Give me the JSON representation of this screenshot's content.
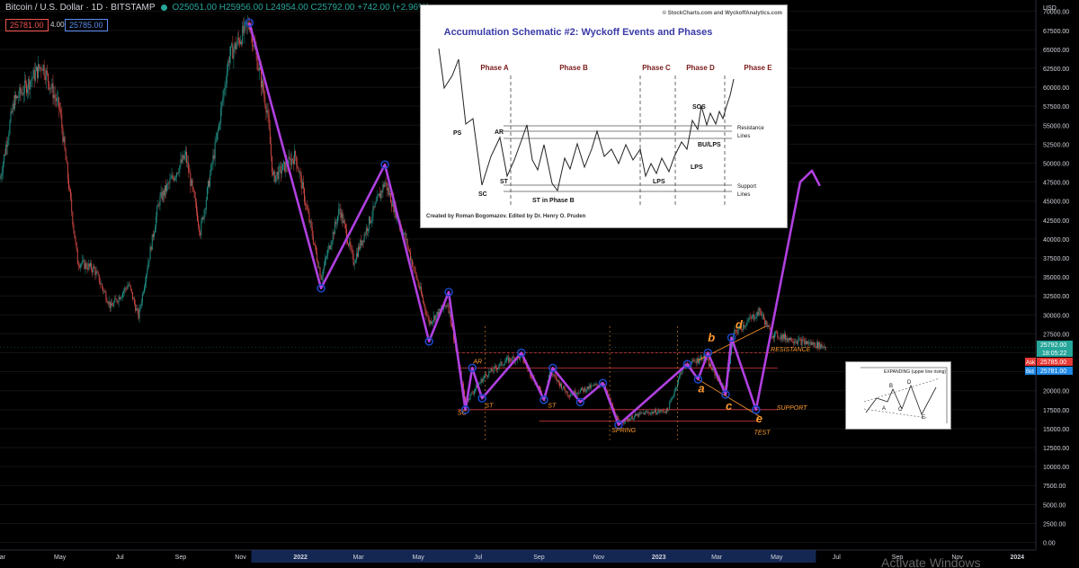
{
  "header": {
    "symbol": "Bitcoin / U.S. Dollar · 1D · BITSTAMP",
    "ohlc": "O25051.00 H25956.00 L24954.00 C25792.00 +742.00 (+2.96%)",
    "bid_price": "25781.00",
    "spread": "4.00",
    "ask_price": "25785.00"
  },
  "chart_data": {
    "type": "candlestick",
    "currency_label": "USD",
    "y_ticks": [
      0,
      2500,
      5000,
      7500,
      10000,
      12500,
      15000,
      17500,
      20000,
      22500,
      25000,
      27500,
      30000,
      32500,
      35000,
      37500,
      40000,
      42500,
      45000,
      47500,
      50000,
      52500,
      55000,
      57500,
      60000,
      62500,
      65000,
      67500,
      70000
    ],
    "y_tick_labels": [
      "0.00",
      "2500.00",
      "5000.00",
      "7500.00",
      "10000.00",
      "12500.00",
      "15000.00",
      "17500.00",
      "20000.00",
      "22500.00",
      "25000.00",
      "27500.00",
      "30000.00",
      "32500.00",
      "35000.00",
      "37500.00",
      "40000.00",
      "42500.00",
      "45000.00",
      "47500.00",
      "50000.00",
      "52500.00",
      "55000.00",
      "57500.00",
      "60000.00",
      "62500.00",
      "65000.00",
      "67500.00",
      "70000.00"
    ],
    "ylim": [
      -1000,
      71500
    ],
    "x_start": "2021-03-01",
    "x_end": "2024-01-20",
    "x_ticks": [
      {
        "date": "2021-03-01",
        "label": "Mar"
      },
      {
        "date": "2021-05-01",
        "label": "May"
      },
      {
        "date": "2021-07-01",
        "label": "Jul"
      },
      {
        "date": "2021-09-01",
        "label": "Sep"
      },
      {
        "date": "2021-11-01",
        "label": "Nov"
      },
      {
        "date": "2022-01-01",
        "label": "2022"
      },
      {
        "date": "2022-03-01",
        "label": "Mar"
      },
      {
        "date": "2022-05-01",
        "label": "May"
      },
      {
        "date": "2022-07-01",
        "label": "Jul"
      },
      {
        "date": "2022-09-01",
        "label": "Sep"
      },
      {
        "date": "2022-11-01",
        "label": "Nov"
      },
      {
        "date": "2023-01-01",
        "label": "2023"
      },
      {
        "date": "2023-03-01",
        "label": "Mar"
      },
      {
        "date": "2023-05-01",
        "label": "May"
      },
      {
        "date": "2023-07-01",
        "label": "Jul"
      },
      {
        "date": "2023-09-01",
        "label": "Sep"
      },
      {
        "date": "2023-11-01",
        "label": "Nov"
      },
      {
        "date": "2024-01-01",
        "label": "2024"
      }
    ],
    "price_path": [
      [
        "2021-03-01",
        48000
      ],
      [
        "2021-03-15",
        58000
      ],
      [
        "2021-04-13",
        63000
      ],
      [
        "2021-05-01",
        57000
      ],
      [
        "2021-05-19",
        37000
      ],
      [
        "2021-06-05",
        36000
      ],
      [
        "2021-06-22",
        31000
      ],
      [
        "2021-07-10",
        34000
      ],
      [
        "2021-07-20",
        29800
      ],
      [
        "2021-08-10",
        45000
      ],
      [
        "2021-09-06",
        51000
      ],
      [
        "2021-09-21",
        41000
      ],
      [
        "2021-10-10",
        55000
      ],
      [
        "2021-10-20",
        64000
      ],
      [
        "2021-11-10",
        68500
      ],
      [
        "2021-11-28",
        57000
      ],
      [
        "2021-12-04",
        48000
      ],
      [
        "2021-12-27",
        51000
      ],
      [
        "2022-01-22",
        35000
      ],
      [
        "2022-02-10",
        44000
      ],
      [
        "2022-02-24",
        37000
      ],
      [
        "2022-03-28",
        47500
      ],
      [
        "2022-04-18",
        40000
      ],
      [
        "2022-05-12",
        29000
      ],
      [
        "2022-05-31",
        31500
      ],
      [
        "2022-06-18",
        18500
      ],
      [
        "2022-07-08",
        22000
      ],
      [
        "2022-07-30",
        24000
      ],
      [
        "2022-08-14",
        24500
      ],
      [
        "2022-09-06",
        19000
      ],
      [
        "2022-09-12",
        22500
      ],
      [
        "2022-10-01",
        19500
      ],
      [
        "2022-11-05",
        21000
      ],
      [
        "2022-11-21",
        15800
      ],
      [
        "2022-12-15",
        17000
      ],
      [
        "2023-01-10",
        17400
      ],
      [
        "2023-01-25",
        23000
      ],
      [
        "2023-02-16",
        24500
      ],
      [
        "2023-03-10",
        20000
      ],
      [
        "2023-03-18",
        27500
      ],
      [
        "2023-04-14",
        30500
      ],
      [
        "2023-04-25",
        27500
      ],
      [
        "2023-05-25",
        26500
      ],
      [
        "2023-06-20",
        25800
      ]
    ],
    "wave_points": [
      [
        "2021-11-10",
        68500
      ],
      [
        "2022-01-22",
        33500
      ],
      [
        "2022-03-28",
        49800
      ],
      [
        "2022-05-12",
        26500
      ],
      [
        "2022-06-01",
        33000
      ],
      [
        "2022-06-18",
        17500
      ],
      [
        "2022-06-25",
        23000
      ],
      [
        "2022-07-05",
        19000
      ],
      [
        "2022-08-14",
        25000
      ],
      [
        "2022-09-06",
        18800
      ],
      [
        "2022-09-15",
        23000
      ],
      [
        "2022-10-13",
        18500
      ],
      [
        "2022-11-05",
        21000
      ],
      [
        "2022-11-21",
        15500
      ],
      [
        "2023-01-30",
        23500
      ],
      [
        "2023-02-10",
        21500
      ],
      [
        "2023-02-20",
        25000
      ],
      [
        "2023-03-10",
        19500
      ],
      [
        "2023-03-16",
        27000
      ],
      [
        "2023-04-10",
        17500
      ],
      [
        "2023-05-25",
        47500
      ],
      [
        "2023-06-06",
        49000
      ],
      [
        "2023-06-14",
        47000
      ]
    ],
    "resistance_level": 25000,
    "support_level": 17500,
    "inner_resistance": 23000,
    "inner_support": 16000,
    "range_lines_from": "2022-06-10",
    "range_lines_to": "2023-05-02",
    "current_price": "25792.00",
    "countdown": "18:05:22",
    "ask_label": "Ask",
    "ask_value": "25785.00",
    "bid_label": "Bid",
    "bid_value": "25781.00",
    "labels": {
      "resistance": "RESISTANCE",
      "support": "SUPPORT",
      "spring": "SPRING",
      "test": "TEST",
      "sc": "SC",
      "ar": "AR",
      "st1": "ST",
      "st2": "ST",
      "a": "a",
      "b": "b",
      "c": "c",
      "d": "d",
      "e": "e"
    },
    "label_positions": {
      "resistance": [
        "2023-04-25",
        25200
      ],
      "support": [
        "2023-05-01",
        17500
      ],
      "spring": [
        "2022-11-14",
        14500
      ],
      "test": [
        "2023-04-08",
        14200
      ],
      "sc": [
        "2022-06-10",
        16800
      ],
      "ar": [
        "2022-06-26",
        23600
      ],
      "st1": [
        "2022-07-08",
        17800
      ],
      "st2": [
        "2022-09-10",
        17800
      ],
      "a": [
        "2023-02-10",
        19800
      ],
      "b": [
        "2023-02-20",
        26500
      ],
      "c": [
        "2023-03-10",
        17500
      ],
      "d": [
        "2023-03-20",
        28200
      ],
      "e": [
        "2023-04-10",
        15800
      ]
    },
    "candles_band_price": 25750,
    "activation_text": "Activate Windows"
  },
  "schematic": {
    "credit_top": "© StockCharts.com and WyckoffAnalytics.com",
    "title": "Accumulation Schematic #2: Wyckoff Events and Phases",
    "phases": [
      "Phase A",
      "Phase B",
      "Phase C",
      "Phase D",
      "Phase E"
    ],
    "events": {
      "ps": "PS",
      "sc": "SC",
      "ar": "AR",
      "st": "ST",
      "st_phase_b": "ST in Phase B",
      "lps1": "LPS",
      "lps2": "LPS",
      "sos": "SOS",
      "bu_lps": "BU/LPS"
    },
    "resistance_lines": [
      "Resistance",
      "Lines"
    ],
    "support_lines": [
      "Support",
      "Lines"
    ],
    "credit_bottom": "Created by Roman Bogomazov. Edited by Dr. Henry O. Pruden"
  },
  "mini_pattern": {
    "title": "EXPANDING (upper line rising)",
    "points": [
      "A",
      "B",
      "C",
      "D",
      "E"
    ]
  },
  "colors": {
    "background": "#000000",
    "wave": "#b040e0",
    "wave_node": "#1a44c0",
    "annotation_orange": "#ff9a2e",
    "range_line": "#d23a3a",
    "bull": "#26a69a",
    "bear": "#ef5350",
    "schematic_title": "#3a3aa8",
    "schematic_phase": "#7a1a1a",
    "price_tag": "#26a69a",
    "ask_tag": "#e53935",
    "bid_tag": "#1e88e5"
  }
}
